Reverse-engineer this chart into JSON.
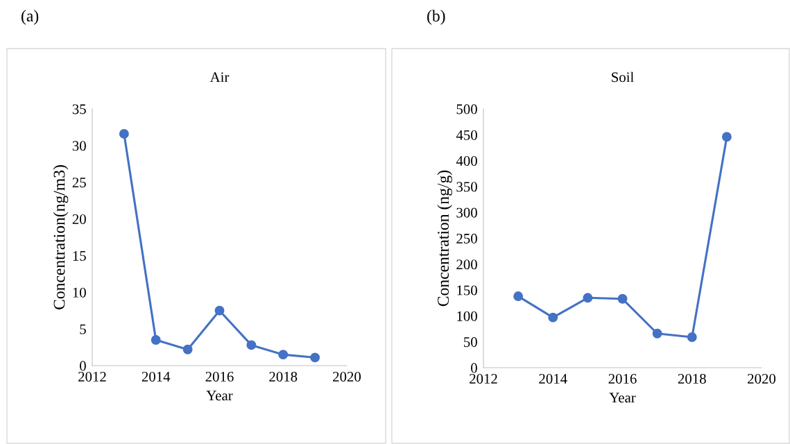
{
  "chart_data": [
    {
      "type": "line",
      "title": "Air",
      "annotations": [
        "(a)"
      ],
      "xlabel": "Year",
      "ylabel": "Concentration(ng/m3)",
      "x": [
        2013,
        2014,
        2015,
        2016,
        2017,
        2018,
        2019
      ],
      "series": [
        {
          "color": "#4472c4",
          "values": [
            31.6,
            3.5,
            2.2,
            7.5,
            2.8,
            1.5,
            1.1
          ]
        }
      ],
      "xlim": [
        2012,
        2020
      ],
      "xticks": [
        2012,
        2014,
        2016,
        2018,
        2020
      ],
      "ylim": [
        0,
        35
      ],
      "yticks": [
        0,
        5,
        10,
        15,
        20,
        25,
        30,
        35
      ],
      "grid": false,
      "legend": false,
      "marker": "circle",
      "line_style": "solid"
    },
    {
      "type": "line",
      "title": "Soil",
      "annotations": [
        "(b)"
      ],
      "xlabel": "Year",
      "ylabel": "Concentration (ng/g)",
      "x": [
        2013,
        2014,
        2015,
        2016,
        2017,
        2018,
        2019
      ],
      "series": [
        {
          "color": "#4472c4",
          "values": [
            138,
            97,
            135,
            133,
            66,
            59,
            446
          ]
        }
      ],
      "xlim": [
        2012,
        2020
      ],
      "xticks": [
        2012,
        2014,
        2016,
        2018,
        2020
      ],
      "ylim": [
        0,
        500
      ],
      "yticks": [
        0,
        50,
        100,
        150,
        200,
        250,
        300,
        350,
        400,
        450,
        500
      ],
      "grid": false,
      "legend": false,
      "marker": "circle",
      "line_style": "solid"
    }
  ]
}
